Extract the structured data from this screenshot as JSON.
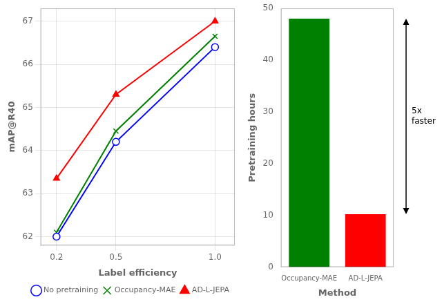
{
  "chart_data": [
    {
      "type": "line",
      "x": [
        0.2,
        0.5,
        1.0
      ],
      "series": [
        {
          "name": "No pretraining",
          "color": "blue",
          "marker": "circle",
          "values": [
            62.0,
            64.2,
            66.4
          ]
        },
        {
          "name": "Occupancy-MAE",
          "color": "green",
          "marker": "x",
          "values": [
            62.1,
            64.45,
            66.65
          ]
        },
        {
          "name": "AD-L-JEPA",
          "color": "red",
          "marker": "triangle",
          "values": [
            63.35,
            65.3,
            67.0
          ]
        }
      ],
      "xlabel": "Label efficiency",
      "ylabel": "mAP@R40",
      "xlim": [
        0.12,
        1.1
      ],
      "xticks": [
        0.2,
        0.5,
        {
          "value": 1.0,
          "label": "1.0"
        }
      ],
      "ylim": [
        61.8,
        67.3
      ],
      "yticks": [
        62,
        63,
        64,
        65,
        66,
        67
      ],
      "grid": true,
      "legend": "lower right"
    },
    {
      "type": "bar",
      "categories": [
        "Occupancy-MAE",
        "AD-L-JEPA"
      ],
      "values": [
        48.0,
        10.2
      ],
      "colors": [
        "#008000",
        "#ff0000"
      ],
      "xlabel": "Method",
      "ylabel": "Pretraining hours",
      "ylim": [
        0,
        50
      ],
      "yticks": [
        0,
        10,
        20,
        30,
        40,
        50
      ],
      "grid": false,
      "annotation": "5x\nfaster"
    }
  ]
}
